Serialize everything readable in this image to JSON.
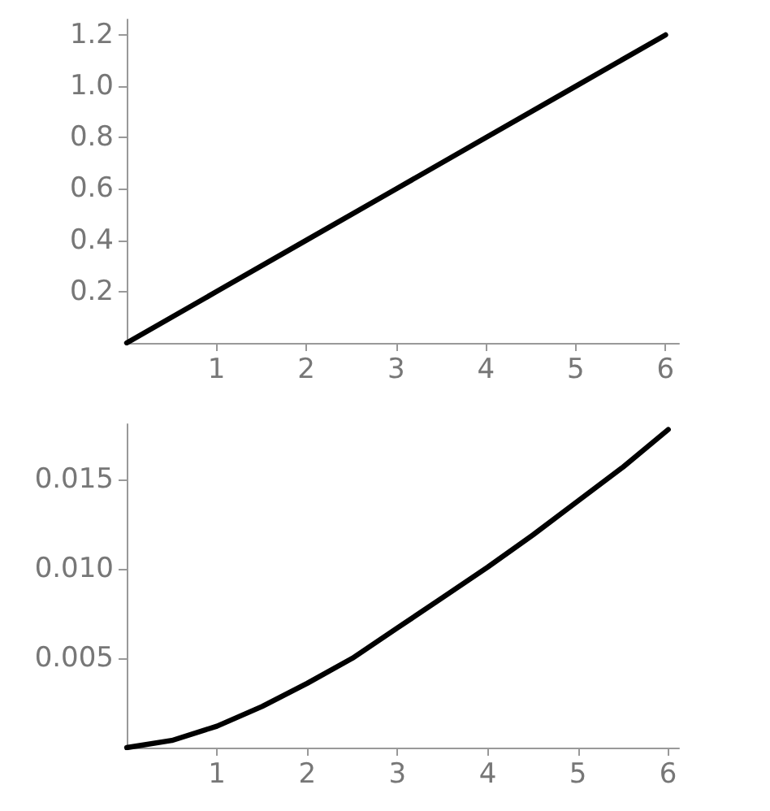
{
  "chart_data": [
    {
      "type": "line",
      "x": [
        0,
        1,
        2,
        3,
        4,
        5,
        6
      ],
      "values": [
        0,
        0.2,
        0.4,
        0.6,
        0.8,
        1.0,
        1.2
      ],
      "color": "#000000",
      "xlim": [
        0,
        6.15
      ],
      "ylim": [
        0,
        1.26
      ],
      "xticks": [
        1,
        2,
        3,
        4,
        5,
        6
      ],
      "yticks": [
        0.2,
        0.4,
        0.6,
        0.8,
        {
          "value": 1,
          "label": "1.0"
        },
        1.2
      ],
      "grid": false,
      "marker": "none",
      "line_style": "solid"
    },
    {
      "type": "line",
      "x": [
        0,
        0.5,
        1,
        1.5,
        2,
        2.5,
        3,
        3.5,
        4,
        4.5,
        5,
        5.5,
        6
      ],
      "values": [
        0,
        0.0004,
        0.0012,
        0.0023,
        0.0036,
        0.005,
        0.0067,
        0.0084,
        0.0101,
        0.0119,
        0.0138,
        0.0157,
        0.0178
      ],
      "color": "#000000",
      "xlim": [
        0,
        6.12
      ],
      "ylim": [
        0,
        0.0181
      ],
      "xticks": [
        1,
        2,
        3,
        4,
        5,
        6
      ],
      "yticks": [
        0.005,
        {
          "value": 0.01,
          "label": "0.010"
        },
        0.015
      ],
      "grid": false,
      "marker": "none",
      "line_style": "solid"
    }
  ]
}
